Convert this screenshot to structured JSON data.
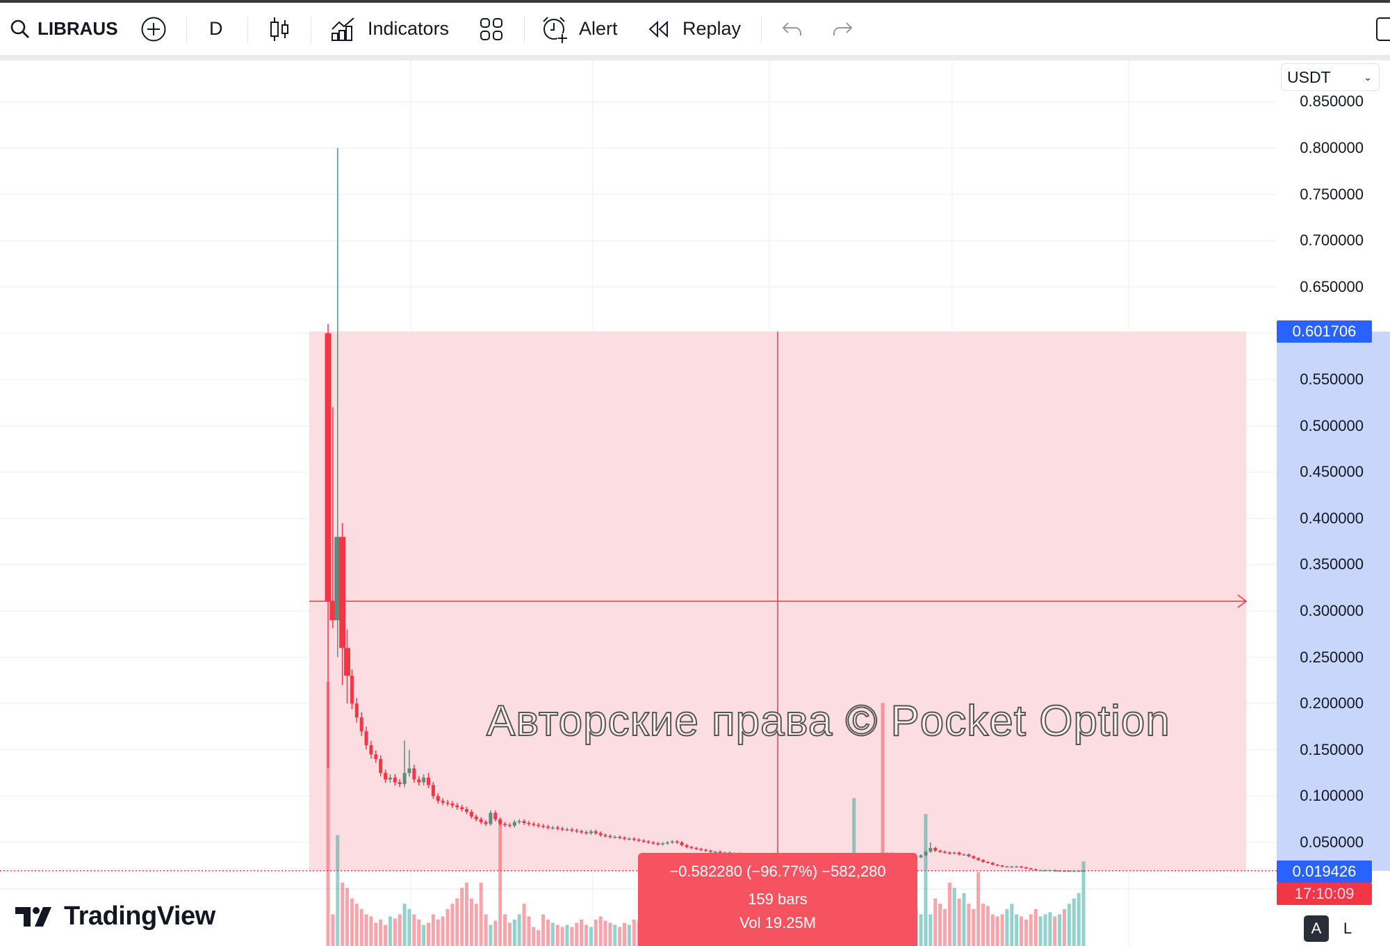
{
  "toolbar": {
    "symbol": "LIBRAUS",
    "interval": "D",
    "indicators_label": "Indicators",
    "alert_label": "Alert",
    "replay_label": "Replay"
  },
  "price_axis": {
    "currency": "USDT",
    "labels": [
      "0.850000",
      "0.800000",
      "0.750000",
      "0.700000",
      "0.650000",
      "0.550000",
      "0.500000",
      "0.450000",
      "0.400000",
      "0.350000",
      "0.300000",
      "0.250000",
      "0.200000",
      "0.150000",
      "0.100000",
      "0.050000"
    ],
    "range_top_label": "0.601706",
    "last_price_label": "0.019426",
    "countdown_label": "17:10:09"
  },
  "measure_tooltip": {
    "change": "−0.582280 (−96.77%) −582,280",
    "bars": "159 bars",
    "volume": "Vol 19.25M"
  },
  "brand": {
    "logo_text": "TradingView"
  },
  "watermark": "Авторские права © Pocket Option",
  "scale_buttons": {
    "auto": "A",
    "log": "L"
  },
  "colors": {
    "up": "#26a69a",
    "down": "#f23645",
    "up_muted": "#5b8c7c",
    "range_fill": "#fcdde1",
    "range_line": "#f23645",
    "axis_highlight": "#c9d6fb",
    "tag_blue": "#2962ff",
    "tag_red": "#f23645"
  },
  "chart_data": {
    "type": "candlestick",
    "ylim": [
      0,
      0.85
    ],
    "first_open": 0.6,
    "close": [
      0.31,
      0.29,
      0.38,
      0.26,
      0.23,
      0.2,
      0.185,
      0.17,
      0.155,
      0.145,
      0.14,
      0.125,
      0.118,
      0.12,
      0.115,
      0.113,
      0.125,
      0.13,
      0.118,
      0.115,
      0.12,
      0.112,
      0.1,
      0.095,
      0.093,
      0.092,
      0.09,
      0.088,
      0.086,
      0.083,
      0.078,
      0.075,
      0.072,
      0.07,
      0.082,
      0.075,
      0.07,
      0.069,
      0.068,
      0.072,
      0.073,
      0.071,
      0.07,
      0.069,
      0.068,
      0.067,
      0.066,
      0.066,
      0.065,
      0.064,
      0.064,
      0.063,
      0.062,
      0.061,
      0.06,
      0.062,
      0.06,
      0.058,
      0.057,
      0.056,
      0.056,
      0.055,
      0.054,
      0.054,
      0.053,
      0.052,
      0.051,
      0.05,
      0.049,
      0.048,
      0.049,
      0.05,
      0.051,
      0.05,
      0.047,
      0.045,
      0.044,
      0.043,
      0.042,
      0.041,
      0.04,
      0.04,
      0.039,
      0.039,
      0.038,
      0.038,
      0.037,
      0.037,
      0.037,
      0.036,
      0.036,
      0.036,
      0.035,
      0.035,
      0.035,
      0.035,
      0.034,
      0.034,
      0.034,
      0.034,
      0.034,
      0.034,
      0.033,
      0.033,
      0.033,
      0.033,
      0.033,
      0.033,
      0.033,
      0.033,
      0.033,
      0.033,
      0.032,
      0.032,
      0.032,
      0.031,
      0.03,
      0.038,
      0.034,
      0.034,
      0.033,
      0.033,
      0.033,
      0.034,
      0.036,
      0.04,
      0.044,
      0.041,
      0.04,
      0.039,
      0.038,
      0.039,
      0.037,
      0.037,
      0.035,
      0.033,
      0.031,
      0.029,
      0.028,
      0.026,
      0.025,
      0.024,
      0.024,
      0.024,
      0.024,
      0.023,
      0.022,
      0.021,
      0.02,
      0.02,
      0.02,
      0.02,
      0.019,
      0.0195,
      0.0194,
      0.0194,
      0.0194,
      0.0194,
      0.0194
    ],
    "high_overrides": {
      "0": 0.61,
      "1": 0.52,
      "2": 0.8,
      "3": 0.395,
      "4": 0.28,
      "16": 0.16,
      "17": 0.15,
      "21": 0.125,
      "126": 0.05
    },
    "low_overrides": {
      "0": 0.13,
      "2": 0.25,
      "3": 0.22,
      "4": 0.2
    },
    "volume": [
      250,
      30,
      105,
      60,
      55,
      45,
      40,
      35,
      30,
      28,
      22,
      25,
      20,
      28,
      26,
      30,
      40,
      35,
      30,
      25,
      20,
      22,
      30,
      25,
      28,
      35,
      40,
      45,
      55,
      60,
      45,
      40,
      60,
      30,
      20,
      24,
      120,
      30,
      22,
      25,
      30,
      40,
      28,
      18,
      15,
      30,
      25,
      22,
      20,
      18,
      20,
      18,
      22,
      25,
      20,
      18,
      25,
      28,
      24,
      22,
      20,
      18,
      22,
      20,
      25,
      24,
      20,
      18,
      25,
      22,
      30,
      25,
      20,
      28,
      24,
      22,
      26,
      20,
      18,
      22,
      24,
      20,
      25,
      22,
      18,
      20,
      22,
      24,
      20,
      25,
      22,
      20,
      18,
      25,
      22,
      20,
      24,
      22,
      26,
      24,
      20,
      22,
      25,
      20,
      18,
      22,
      24,
      26,
      30,
      40,
      140,
      35,
      30,
      28,
      25,
      30,
      230,
      40,
      35,
      30,
      28,
      25,
      30,
      35,
      30,
      125,
      30,
      45,
      40,
      35,
      60,
      55,
      45,
      50,
      40,
      35,
      70,
      40,
      38,
      30,
      28,
      30,
      35,
      40,
      30,
      28,
      25,
      30,
      35,
      28,
      30,
      32,
      28,
      30,
      35,
      40,
      45,
      50,
      80
    ]
  }
}
